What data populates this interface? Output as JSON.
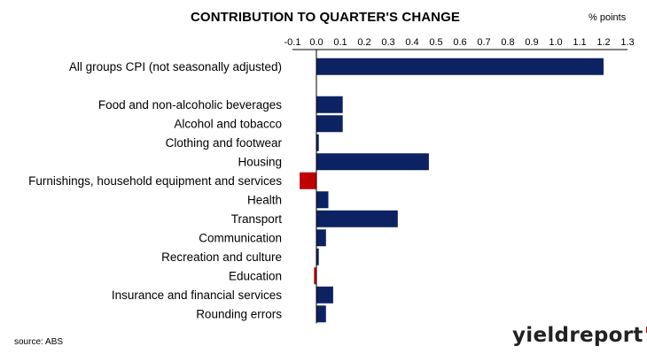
{
  "chart_data": {
    "type": "bar",
    "orientation": "horizontal",
    "title": "CONTRIBUTION TO QUARTER'S CHANGE",
    "units_label": "% points",
    "xlim": [
      -0.1,
      1.3
    ],
    "x_ticks": [
      "-0.1",
      "0.0",
      "0.1",
      "0.2",
      "0.3",
      "0.4",
      "0.5",
      "0.6",
      "0.7",
      "0.8",
      "0.9",
      "1.0",
      "1.1",
      "1.2",
      "1.3"
    ],
    "x_tick_values": [
      -0.1,
      0.0,
      0.1,
      0.2,
      0.3,
      0.4,
      0.5,
      0.6,
      0.7,
      0.8,
      0.9,
      1.0,
      1.1,
      1.2,
      1.3
    ],
    "axis_position": "top",
    "grid": false,
    "legend": "none",
    "categories": [
      "All groups CPI (not seasonally adjusted)",
      "",
      "Food and non-alcoholic beverages",
      "Alcohol and tobacco",
      "Clothing and footwear",
      "Housing",
      "Furnishings, household equipment and services",
      "Health",
      "Transport",
      "Communication",
      "Recreation and culture",
      "Education",
      "Insurance and financial services",
      "Rounding errors"
    ],
    "values": [
      1.2,
      null,
      0.11,
      0.11,
      0.01,
      0.47,
      -0.07,
      0.05,
      0.34,
      0.04,
      0.01,
      -0.01,
      0.07,
      0.04
    ],
    "colors": {
      "positive": "#0d2262",
      "negative": "#c00000"
    }
  },
  "source": "source: ABS",
  "logo": {
    "text": "yieldreport",
    "symbol": "%",
    "symbol_colors": [
      "#c00000",
      "#1f8a3a"
    ]
  }
}
